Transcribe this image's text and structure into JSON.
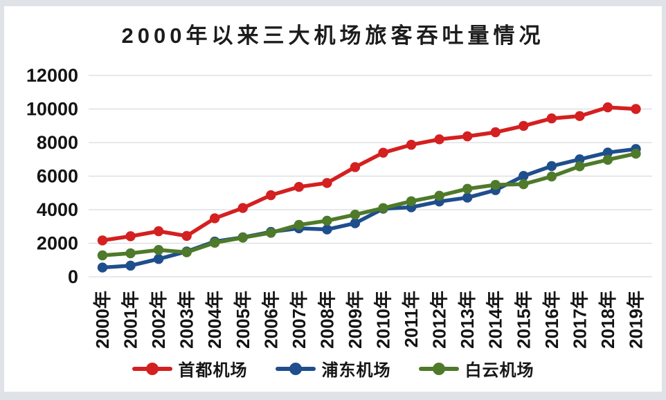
{
  "page": {
    "outer_background": "#dfe2e7",
    "card_background": "#ffffff",
    "gridline_color": "#d8dbde",
    "text_color": "#141414"
  },
  "chart_data": {
    "type": "line",
    "title": "2000年以来三大机场旅客吞吐量情况",
    "categories": [
      "2000年",
      "2001年",
      "2002年",
      "2003年",
      "2004年",
      "2005年",
      "2006年",
      "2007年",
      "2008年",
      "2009年",
      "2010年",
      "2011年",
      "2012年",
      "2013年",
      "2014年",
      "2015年",
      "2016年",
      "2017年",
      "2018年",
      "2019年"
    ],
    "y_ticks": [
      0,
      2000,
      4000,
      6000,
      8000,
      10000,
      12000
    ],
    "ylim": [
      0,
      12000
    ],
    "grid": "horizontal",
    "legend_position": "bottom",
    "series": [
      {
        "id": "capital",
        "name": "首都机场",
        "color": "#d42020",
        "values": [
          2169,
          2418,
          2716,
          2436,
          3488,
          4100,
          4865,
          5358,
          5592,
          6537,
          7395,
          7867,
          8193,
          8371,
          8613,
          8994,
          9439,
          9579,
          10098,
          10001
        ]
      },
      {
        "id": "pudong",
        "name": "浦东机场",
        "color": "#1f4e8c",
        "values": [
          554,
          666,
          1063,
          1506,
          2102,
          2352,
          2678,
          2892,
          2823,
          3192,
          4058,
          4144,
          4488,
          4719,
          5166,
          6010,
          6598,
          7000,
          7405,
          7615
        ]
      },
      {
        "id": "baiyun",
        "name": "白云机场",
        "color": "#4e7a2a",
        "values": [
          1278,
          1401,
          1601,
          1462,
          2032,
          2335,
          2622,
          3095,
          3344,
          3705,
          4096,
          4504,
          4831,
          5245,
          5478,
          5521,
          5978,
          6584,
          6974,
          7338
        ]
      }
    ]
  }
}
